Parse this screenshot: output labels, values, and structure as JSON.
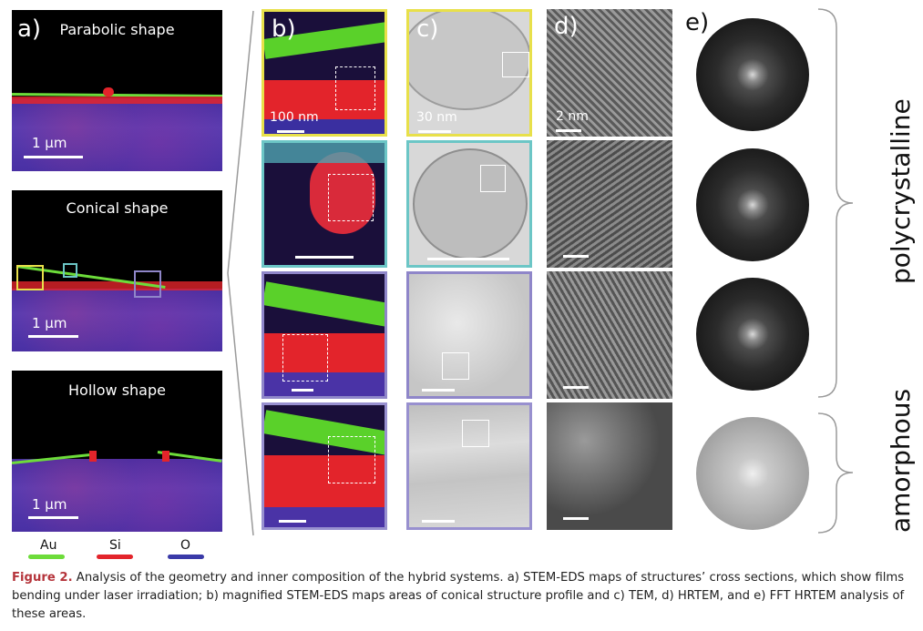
{
  "panel_letters": {
    "a": "a)",
    "b": "b)",
    "c": "c)",
    "d": "d)",
    "e": "e)"
  },
  "panel_a": [
    {
      "title": "Parabolic shape",
      "scale": "1 µm"
    },
    {
      "title": "Conical shape",
      "scale": "1 µm"
    },
    {
      "title": "Hollow shape",
      "scale": "1 µm"
    }
  ],
  "scale_labels": {
    "b": "100 nm",
    "c": "30 nm",
    "d": "2 nm"
  },
  "legend": [
    {
      "label": "Au",
      "color": "#6ddc3a"
    },
    {
      "label": "Si",
      "color": "#e3242b"
    },
    {
      "label": "O",
      "color": "#3a3aa8"
    }
  ],
  "side_labels": {
    "top": "polycrystalline",
    "bottom": "amorphous"
  },
  "caption": {
    "label": "Figure 2.",
    "text": "Analysis of the geometry and inner composition of the hybrid systems. a) STEM-EDS maps of structures’ cross sections, which show films bending under laser irradiation; b) magnified STEM-EDS maps areas of conical structure profile and c) TEM, d) HRTEM, and e) FFT HRTEM analysis of these areas."
  }
}
